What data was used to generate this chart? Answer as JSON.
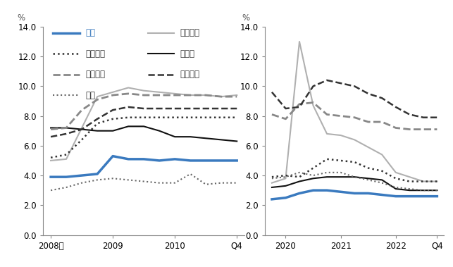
{
  "left_panel": {
    "xlabel_ticks": [
      "2008年",
      "2009",
      "2010",
      "Q4"
    ],
    "x_values": [
      0,
      1,
      2,
      3,
      4,
      5,
      6,
      7,
      8,
      9,
      10,
      11,
      12
    ],
    "series": {
      "日本": [
        3.9,
        3.9,
        4.0,
        4.1,
        5.3,
        5.1,
        5.1,
        5.0,
        5.1,
        5.0,
        5.0,
        5.0,
        5.0
      ],
      "アメリカ": [
        5.0,
        5.1,
        7.2,
        9.3,
        9.6,
        9.9,
        9.7,
        9.6,
        9.5,
        9.4,
        9.4,
        9.3,
        9.4
      ],
      "イギリス": [
        5.2,
        5.4,
        6.4,
        7.5,
        7.8,
        7.9,
        7.9,
        7.9,
        7.9,
        7.9,
        7.9,
        7.9,
        7.9
      ],
      "ドイツ": [
        7.2,
        7.2,
        7.1,
        7.0,
        7.0,
        7.3,
        7.3,
        7.0,
        6.6,
        6.6,
        6.5,
        6.4,
        6.3
      ],
      "フランス": [
        7.1,
        7.2,
        8.4,
        9.1,
        9.4,
        9.5,
        9.4,
        9.4,
        9.4,
        9.4,
        9.4,
        9.3,
        9.3
      ],
      "イタリア": [
        6.6,
        6.8,
        7.1,
        7.8,
        8.4,
        8.6,
        8.5,
        8.5,
        8.5,
        8.5,
        8.5,
        8.5,
        8.5
      ],
      "韓国": [
        3.0,
        3.2,
        3.5,
        3.7,
        3.8,
        3.7,
        3.6,
        3.5,
        3.5,
        4.1,
        3.4,
        3.5,
        3.5
      ]
    }
  },
  "right_panel": {
    "xlabel_ticks": [
      "2020",
      "2021",
      "2022",
      "Q4"
    ],
    "x_values": [
      0,
      1,
      2,
      3,
      4,
      5,
      6,
      7,
      8,
      9,
      10,
      11,
      12
    ],
    "series": {
      "日本": [
        2.4,
        2.5,
        2.8,
        3.0,
        3.0,
        2.9,
        2.8,
        2.8,
        2.7,
        2.6,
        2.6,
        2.6,
        2.6
      ],
      "アメリカ": [
        3.5,
        3.8,
        13.0,
        8.7,
        6.8,
        6.7,
        6.4,
        5.9,
        5.4,
        4.2,
        3.9,
        3.6,
        3.6
      ],
      "イギリス": [
        3.9,
        4.0,
        3.9,
        4.5,
        5.1,
        5.0,
        4.9,
        4.5,
        4.3,
        3.8,
        3.6,
        3.6,
        3.6
      ],
      "ドイツ": [
        3.2,
        3.3,
        3.6,
        3.8,
        3.9,
        3.9,
        3.9,
        3.8,
        3.7,
        3.1,
        3.0,
        3.0,
        3.0
      ],
      "フランス": [
        8.1,
        7.8,
        8.8,
        8.9,
        8.1,
        8.0,
        7.9,
        7.6,
        7.6,
        7.2,
        7.1,
        7.1,
        7.1
      ],
      "イタリア": [
        9.6,
        8.5,
        8.6,
        10.0,
        10.4,
        10.2,
        10.0,
        9.5,
        9.2,
        8.6,
        8.1,
        7.9,
        7.9
      ],
      "韓国": [
        3.8,
        3.9,
        4.2,
        4.0,
        4.2,
        4.2,
        3.9,
        3.7,
        3.5,
        3.2,
        3.1,
        3.0,
        3.0
      ]
    }
  },
  "ylim": [
    0.0,
    14.0
  ],
  "yticks": [
    0.0,
    2.0,
    4.0,
    6.0,
    8.0,
    10.0,
    12.0,
    14.0
  ],
  "styles": {
    "日本": {
      "linestyle": "-",
      "linewidth": 2.5,
      "color": "#3a7abf"
    },
    "アメリカ": {
      "linestyle": "-",
      "linewidth": 1.5,
      "color": "#b0b0b0"
    },
    "イギリス": {
      "linestyle": ":",
      "linewidth": 1.8,
      "color": "#333333"
    },
    "ドイツ": {
      "linestyle": "-",
      "linewidth": 1.5,
      "color": "#111111"
    },
    "フランス": {
      "linestyle": "--",
      "linewidth": 2.0,
      "color": "#888888"
    },
    "イタリア": {
      "linestyle": "--",
      "linewidth": 1.8,
      "color": "#333333"
    },
    "韓国": {
      "linestyle": ":",
      "linewidth": 1.5,
      "color": "#666666"
    }
  },
  "legend_left_col": [
    "日本",
    "イギリス",
    "フランス",
    "韓国"
  ],
  "legend_right_col": [
    "アメリカ",
    "ドイツ",
    "イタリア"
  ],
  "japan_label_color": "#3a7abf",
  "axis_color": "#555555",
  "percent_label": "%",
  "background_color": "#ffffff"
}
